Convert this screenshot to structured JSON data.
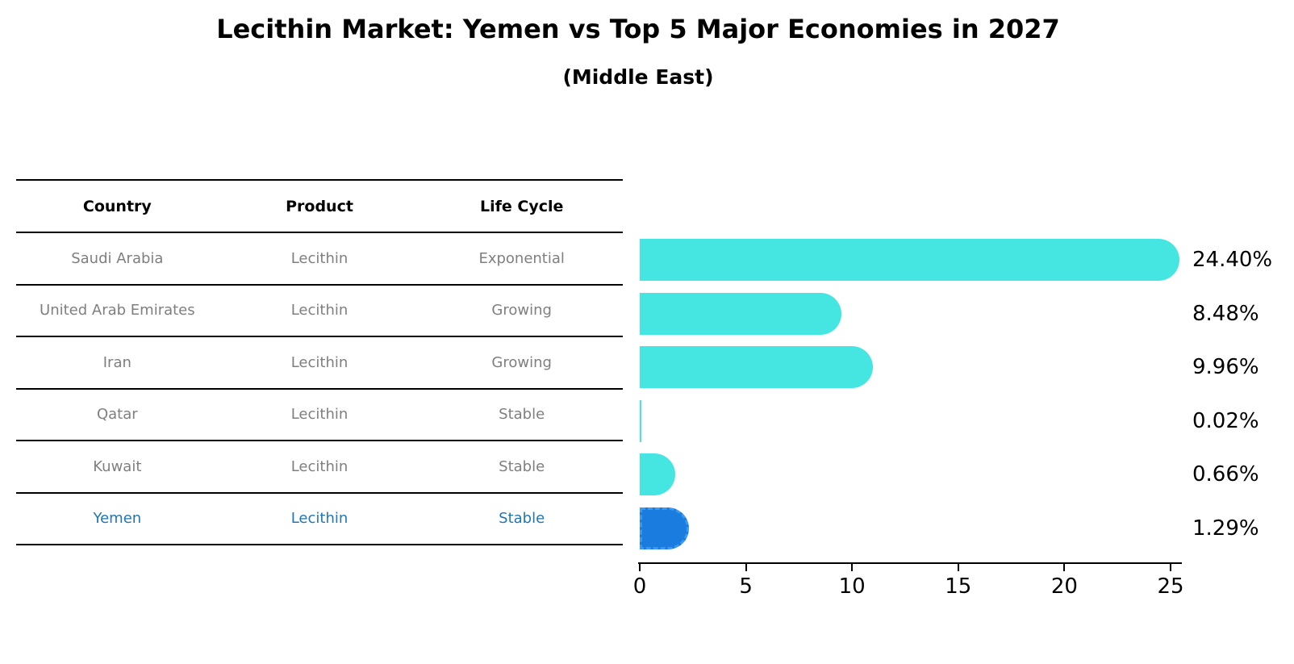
{
  "header": {
    "title": "Lecithin Market: Yemen vs Top 5 Major Economies in 2027",
    "subtitle": "(Middle East)"
  },
  "table": {
    "headers": [
      "Country",
      "Product",
      "Life Cycle"
    ],
    "rows": [
      {
        "country": "Saudi Arabia",
        "product": "Lecithin",
        "life_cycle": "Exponential",
        "highlight": false
      },
      {
        "country": "United Arab Emirates",
        "product": "Lecithin",
        "life_cycle": "Growing",
        "highlight": false
      },
      {
        "country": "Iran",
        "product": "Lecithin",
        "life_cycle": "Growing",
        "highlight": false
      },
      {
        "country": "Qatar",
        "product": "Lecithin",
        "life_cycle": "Stable",
        "highlight": false
      },
      {
        "country": "Kuwait",
        "product": "Lecithin",
        "life_cycle": "Stable",
        "highlight": false
      },
      {
        "country": "Yemen",
        "product": "Lecithin",
        "life_cycle": "Stable",
        "highlight": true
      }
    ]
  },
  "chart_data": {
    "type": "bar",
    "orientation": "horizontal",
    "title": "Lecithin Market: Yemen vs Top 5 Major Economies in 2027",
    "subtitle": "(Middle East)",
    "categories": [
      "Saudi Arabia",
      "United Arab Emirates",
      "Iran",
      "Qatar",
      "Kuwait",
      "Yemen"
    ],
    "values": [
      24.4,
      8.48,
      9.96,
      0.02,
      0.66,
      1.29
    ],
    "value_labels": [
      "24.40%",
      "8.48%",
      "9.96%",
      "0.02%",
      "0.66%",
      "1.29%"
    ],
    "xlabel": "",
    "ylabel": "",
    "xlim": [
      0,
      25
    ],
    "xticks": [
      "0",
      "5",
      "10",
      "15",
      "20",
      "25"
    ],
    "grid": false,
    "legend": false,
    "highlight_category": "Yemen"
  },
  "colors": {
    "bar_cyan": "#45e6e1",
    "bar_blue": "#1b7cdf",
    "bar_blue_dash": "#3a97f2",
    "highlight_text": "#1f77b4",
    "table_text": "#7f7f7f",
    "axis": "#000000"
  }
}
